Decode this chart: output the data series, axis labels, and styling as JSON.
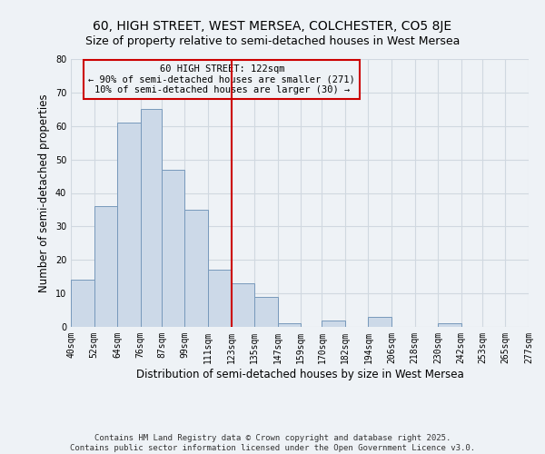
{
  "title": "60, HIGH STREET, WEST MERSEA, COLCHESTER, CO5 8JE",
  "subtitle": "Size of property relative to semi-detached houses in West Mersea",
  "xlabel": "Distribution of semi-detached houses by size in West Mersea",
  "ylabel": "Number of semi-detached properties",
  "bin_edges": [
    40,
    52,
    64,
    76,
    87,
    99,
    111,
    123,
    135,
    147,
    159,
    170,
    182,
    194,
    206,
    218,
    230,
    242,
    253,
    265,
    277
  ],
  "bin_counts": [
    14,
    36,
    61,
    65,
    47,
    35,
    17,
    13,
    9,
    1,
    0,
    2,
    0,
    3,
    0,
    0,
    1,
    0,
    0,
    0
  ],
  "tick_labels": [
    "40sqm",
    "52sqm",
    "64sqm",
    "76sqm",
    "87sqm",
    "99sqm",
    "111sqm",
    "123sqm",
    "135sqm",
    "147sqm",
    "159sqm",
    "170sqm",
    "182sqm",
    "194sqm",
    "206sqm",
    "218sqm",
    "230sqm",
    "242sqm",
    "253sqm",
    "265sqm",
    "277sqm"
  ],
  "bar_facecolor": "#ccd9e8",
  "bar_edgecolor": "#7799bb",
  "vline_x": 123,
  "vline_color": "#cc0000",
  "annotation_line1": "60 HIGH STREET: 122sqm",
  "annotation_line2": "← 90% of semi-detached houses are smaller (271)",
  "annotation_line3": "10% of semi-detached houses are larger (30) →",
  "annotation_box_edgecolor": "#cc0000",
  "ylim": [
    0,
    80
  ],
  "yticks": [
    0,
    10,
    20,
    30,
    40,
    50,
    60,
    70,
    80
  ],
  "grid_color": "#d0d8e0",
  "background_color": "#eef2f6",
  "footer_line1": "Contains HM Land Registry data © Crown copyright and database right 2025.",
  "footer_line2": "Contains public sector information licensed under the Open Government Licence v3.0.",
  "title_fontsize": 10,
  "subtitle_fontsize": 9,
  "axis_label_fontsize": 8.5,
  "tick_fontsize": 7,
  "annotation_fontsize": 7.5,
  "footer_fontsize": 6.5
}
